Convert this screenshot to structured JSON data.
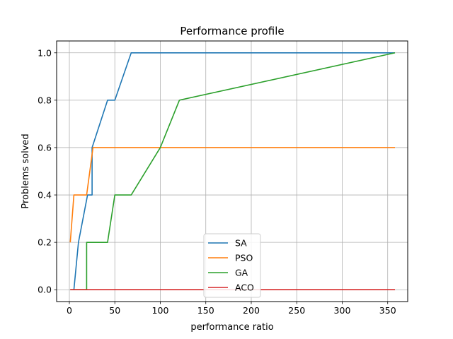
{
  "chart_data": {
    "type": "line",
    "title": "Performance profile",
    "xlabel": "performance ratio",
    "ylabel": "Problems solved",
    "xlim": [
      -14,
      372
    ],
    "ylim": [
      -0.05,
      1.05
    ],
    "xticks": [
      0,
      50,
      100,
      150,
      200,
      250,
      300,
      350
    ],
    "yticks": [
      0.0,
      0.2,
      0.4,
      0.6,
      0.8,
      1.0
    ],
    "xtick_labels": [
      "0",
      "50",
      "100",
      "150",
      "200",
      "250",
      "300",
      "350"
    ],
    "ytick_labels": [
      "0.0",
      "0.2",
      "0.4",
      "0.6",
      "0.8",
      "1.0"
    ],
    "grid": true,
    "legend_position": "lower center",
    "series": [
      {
        "name": "SA",
        "color": "#1f77b4",
        "points": [
          [
            5,
            0.0
          ],
          [
            10,
            0.2
          ],
          [
            20,
            0.4
          ],
          [
            25,
            0.4
          ],
          [
            25,
            0.6
          ],
          [
            42,
            0.8
          ],
          [
            50,
            0.8
          ],
          [
            68,
            1.0
          ],
          [
            358,
            1.0
          ]
        ]
      },
      {
        "name": "PSO",
        "color": "#ff7f0e",
        "points": [
          [
            1,
            0.2
          ],
          [
            5,
            0.4
          ],
          [
            19,
            0.4
          ],
          [
            26,
            0.6
          ],
          [
            358,
            0.6
          ]
        ]
      },
      {
        "name": "GA",
        "color": "#2ca02c",
        "points": [
          [
            1,
            0.0
          ],
          [
            19,
            0.0
          ],
          [
            19,
            0.2
          ],
          [
            42,
            0.2
          ],
          [
            50,
            0.4
          ],
          [
            68,
            0.4
          ],
          [
            100,
            0.6
          ],
          [
            121,
            0.8
          ],
          [
            358,
            1.0
          ]
        ]
      },
      {
        "name": "ACO",
        "color": "#d62728",
        "points": [
          [
            1,
            0.0
          ],
          [
            358,
            0.0
          ]
        ]
      }
    ]
  }
}
